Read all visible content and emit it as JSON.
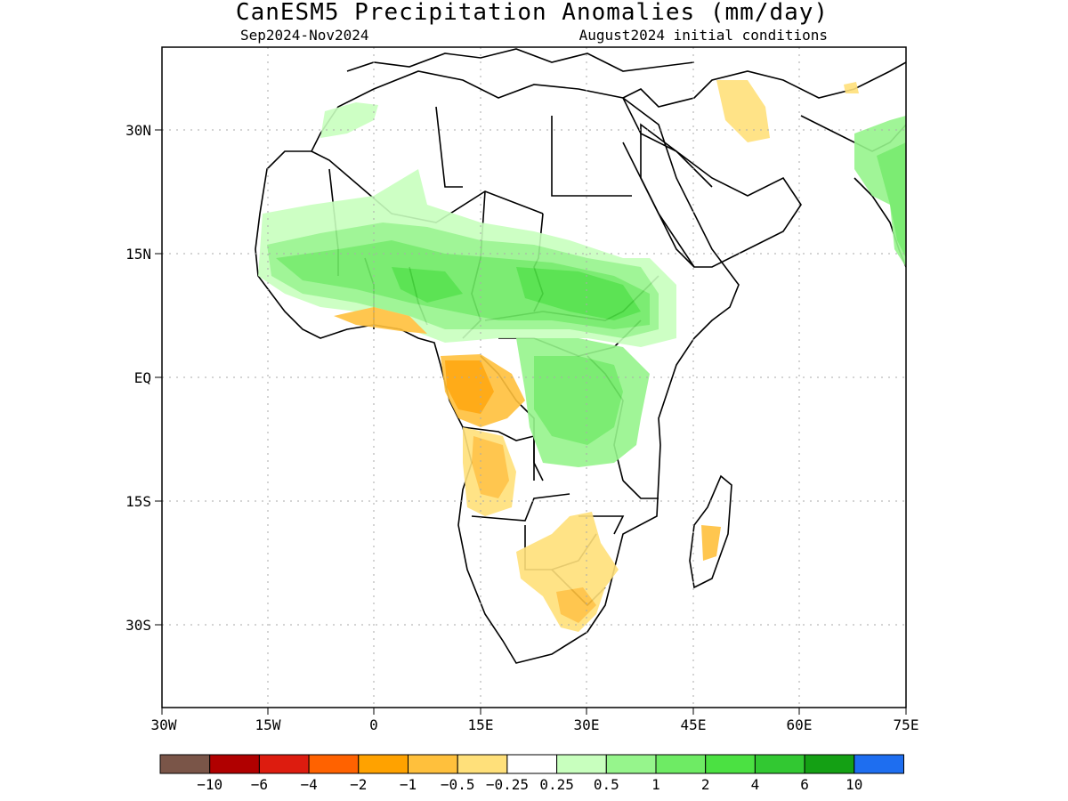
{
  "title": "CanESM5 Precipitation Anomalies (mm/day)",
  "period": "Sep2024-Nov2024",
  "initial_conditions": "August2024 initial conditions",
  "lat_ticks": [
    "30N",
    "15N",
    "EQ",
    "15S",
    "30S"
  ],
  "lon_ticks": [
    "30W",
    "15W",
    "0",
    "15E",
    "30E",
    "45E",
    "60E",
    "75E"
  ],
  "legend": {
    "colors": [
      "#7a5548",
      "#b00000",
      "#dd1c0f",
      "#ff6200",
      "#ffa200",
      "#ffc03c",
      "#ffe07a",
      "#ffffff",
      "#c8ffbe",
      "#96f58c",
      "#6eeb64",
      "#4be142",
      "#32c832",
      "#14a014",
      "#1e6ef0"
    ],
    "labels": [
      "-10",
      "-6",
      "-4",
      "-2",
      "-1",
      "-0.5",
      "-0.25",
      "0.25",
      "0.5",
      "1",
      "2",
      "4",
      "6",
      "10"
    ]
  },
  "colors": {
    "border": "#000000",
    "grid": "#aaaaaa"
  }
}
